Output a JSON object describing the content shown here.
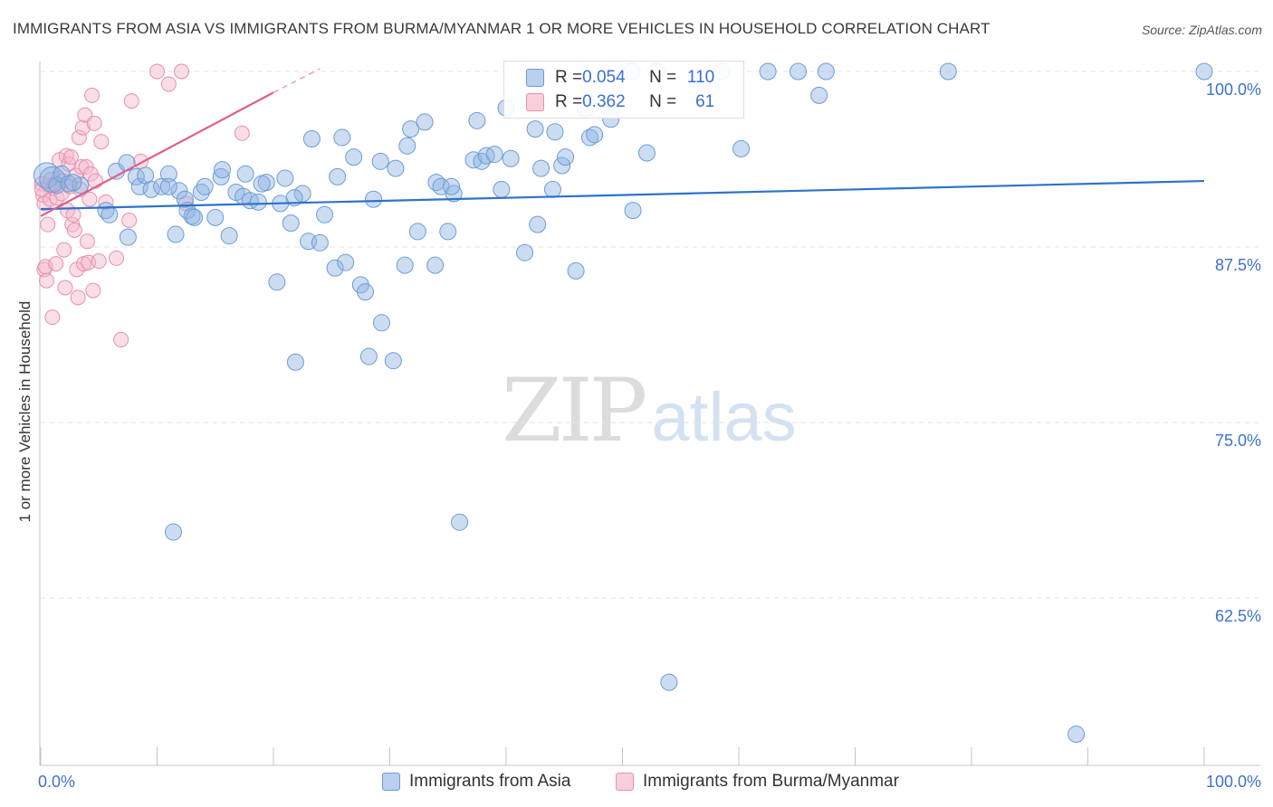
{
  "chart_data": {
    "type": "scatter",
    "title": "IMMIGRANTS FROM ASIA VS IMMIGRANTS FROM BURMA/MYANMAR 1 OR MORE VEHICLES IN HOUSEHOLD CORRELATION CHART",
    "source": "Source: ZipAtlas.com",
    "xlabel": "",
    "ylabel": "1 or more Vehicles in Household",
    "xlim": [
      0,
      100
    ],
    "ylim": [
      50.5,
      101.5
    ],
    "x_tick_labels": {
      "left": "0.0%",
      "right": "100.0%"
    },
    "y_ticks": [
      {
        "value": 100.0,
        "label": "100.0%"
      },
      {
        "value": 87.5,
        "label": "87.5%"
      },
      {
        "value": 75.0,
        "label": "75.0%"
      },
      {
        "value": 62.5,
        "label": "62.5%"
      }
    ],
    "grid": true,
    "legend": {
      "position": "top-center",
      "rows": [
        {
          "r_label": "R = ",
          "r_value": "0.054",
          "n_label": "N = ",
          "n_value": "110"
        },
        {
          "r_label": "R = ",
          "r_value": "0.362",
          "n_label": "N = ",
          "n_value": "61"
        }
      ]
    },
    "series": [
      {
        "name": "Immigrants from Asia",
        "color": "#8fb4e3",
        "stroke": "#6d9bd6",
        "line_color": "#2e73c9",
        "trend": {
          "x1": 0.0,
          "y1": 90.2,
          "x2": 100.0,
          "y2": 92.2
        },
        "points": [
          [
            0.5,
            92.6
          ],
          [
            1.0,
            92.3
          ],
          [
            1.4,
            91.9
          ],
          [
            1.8,
            92.7
          ],
          [
            2.4,
            92.0
          ],
          [
            3.4,
            91.9
          ],
          [
            5.6,
            90.1
          ],
          [
            5.9,
            89.8
          ],
          [
            6.5,
            92.9
          ],
          [
            7.4,
            93.5
          ],
          [
            7.5,
            88.2
          ],
          [
            8.2,
            92.5
          ],
          [
            8.5,
            91.8
          ],
          [
            9.0,
            92.6
          ],
          [
            9.5,
            91.6
          ],
          [
            10.4,
            91.8
          ],
          [
            11.0,
            92.7
          ],
          [
            11.4,
            67.2
          ],
          [
            11.6,
            88.4
          ],
          [
            11.9,
            91.5
          ],
          [
            12.4,
            90.9
          ],
          [
            12.6,
            90.1
          ],
          [
            13.0,
            89.7
          ],
          [
            13.8,
            91.4
          ],
          [
            14.1,
            91.8
          ],
          [
            15.0,
            89.6
          ],
          [
            15.5,
            92.5
          ],
          [
            15.6,
            93.0
          ],
          [
            16.2,
            88.3
          ],
          [
            16.8,
            91.4
          ],
          [
            17.4,
            91.1
          ],
          [
            17.6,
            92.7
          ],
          [
            18.0,
            90.8
          ],
          [
            18.7,
            90.7
          ],
          [
            19.4,
            92.1
          ],
          [
            20.3,
            85.0
          ],
          [
            20.6,
            90.6
          ],
          [
            21.0,
            92.4
          ],
          [
            21.5,
            89.2
          ],
          [
            21.9,
            79.3
          ],
          [
            22.5,
            91.3
          ],
          [
            23.0,
            87.9
          ],
          [
            23.3,
            95.2
          ],
          [
            24.0,
            87.8
          ],
          [
            24.4,
            89.8
          ],
          [
            25.3,
            86.0
          ],
          [
            25.5,
            92.5
          ],
          [
            25.9,
            95.3
          ],
          [
            26.2,
            86.4
          ],
          [
            26.9,
            93.9
          ],
          [
            27.5,
            84.8
          ],
          [
            27.9,
            84.3
          ],
          [
            28.2,
            79.7
          ],
          [
            28.6,
            90.9
          ],
          [
            29.2,
            93.6
          ],
          [
            29.3,
            82.1
          ],
          [
            30.3,
            79.4
          ],
          [
            30.5,
            93.1
          ],
          [
            31.3,
            86.2
          ],
          [
            31.5,
            94.7
          ],
          [
            31.8,
            95.9
          ],
          [
            32.4,
            88.6
          ],
          [
            33.0,
            96.4
          ],
          [
            33.9,
            86.2
          ],
          [
            34.0,
            92.1
          ],
          [
            34.4,
            91.8
          ],
          [
            35.0,
            88.6
          ],
          [
            35.5,
            91.3
          ],
          [
            36.0,
            67.9
          ],
          [
            37.2,
            93.7
          ],
          [
            37.5,
            96.5
          ],
          [
            37.9,
            93.6
          ],
          [
            38.3,
            94.0
          ],
          [
            39.0,
            94.1
          ],
          [
            39.6,
            91.6
          ],
          [
            40.0,
            97.4
          ],
          [
            40.4,
            93.8
          ],
          [
            41.6,
            87.1
          ],
          [
            42.5,
            95.9
          ],
          [
            42.7,
            89.1
          ],
          [
            43.0,
            93.1
          ],
          [
            44.0,
            91.6
          ],
          [
            44.2,
            95.7
          ],
          [
            44.8,
            93.3
          ],
          [
            45.1,
            93.9
          ],
          [
            46.0,
            85.8
          ],
          [
            46.8,
            97.3
          ],
          [
            47.2,
            95.3
          ],
          [
            47.6,
            95.5
          ],
          [
            49.0,
            96.6
          ],
          [
            50.9,
            90.1
          ],
          [
            52.1,
            94.2
          ],
          [
            52.9,
            100.0
          ],
          [
            54.0,
            56.5
          ],
          [
            58.5,
            100.0
          ],
          [
            60.2,
            94.5
          ],
          [
            62.5,
            100.0
          ],
          [
            65.1,
            100.0
          ],
          [
            66.9,
            98.3
          ],
          [
            67.5,
            100.0
          ],
          [
            78.0,
            100.0
          ],
          [
            89.0,
            52.8
          ],
          [
            100.0,
            100.0
          ],
          [
            2.8,
            92.1
          ],
          [
            11.0,
            91.8
          ],
          [
            19.0,
            92.0
          ],
          [
            21.8,
            91.0
          ],
          [
            35.3,
            91.8
          ],
          [
            50.8,
            100.0
          ],
          [
            13.2,
            89.6
          ]
        ]
      },
      {
        "name": "Immigrants from Burma/Myanmar",
        "color": "#f4b6ca",
        "stroke": "#e88fab",
        "line_color": "#e0608a",
        "trend": {
          "x1": 0.0,
          "y1": 89.7,
          "x2": 20.0,
          "y2": 98.5
        },
        "trend_dash_end": {
          "x": 24.0,
          "y": 100.2
        },
        "points": [
          [
            0.1,
            92.0
          ],
          [
            0.2,
            91.2
          ],
          [
            0.3,
            90.6
          ],
          [
            0.3,
            85.9
          ],
          [
            0.4,
            86.1
          ],
          [
            0.5,
            85.1
          ],
          [
            0.6,
            89.1
          ],
          [
            0.7,
            91.9
          ],
          [
            0.8,
            90.9
          ],
          [
            0.9,
            92.3
          ],
          [
            1.0,
            82.5
          ],
          [
            1.1,
            91.7
          ],
          [
            1.3,
            86.3
          ],
          [
            1.4,
            91.0
          ],
          [
            1.5,
            92.4
          ],
          [
            1.6,
            93.7
          ],
          [
            1.8,
            91.3
          ],
          [
            1.9,
            92.2
          ],
          [
            2.0,
            87.3
          ],
          [
            2.1,
            84.6
          ],
          [
            2.2,
            94.0
          ],
          [
            2.3,
            90.1
          ],
          [
            2.4,
            93.4
          ],
          [
            2.5,
            91.8
          ],
          [
            2.6,
            93.9
          ],
          [
            2.7,
            89.1
          ],
          [
            2.8,
            89.8
          ],
          [
            2.9,
            88.7
          ],
          [
            3.0,
            92.6
          ],
          [
            3.1,
            85.9
          ],
          [
            3.2,
            83.9
          ],
          [
            3.3,
            95.3
          ],
          [
            3.4,
            91.6
          ],
          [
            3.5,
            93.2
          ],
          [
            3.6,
            96.0
          ],
          [
            3.7,
            86.3
          ],
          [
            3.8,
            96.9
          ],
          [
            3.9,
            93.2
          ],
          [
            4.0,
            87.9
          ],
          [
            4.1,
            86.4
          ],
          [
            4.2,
            90.9
          ],
          [
            4.3,
            92.7
          ],
          [
            4.4,
            98.3
          ],
          [
            4.5,
            84.4
          ],
          [
            4.6,
            96.3
          ],
          [
            4.7,
            92.2
          ],
          [
            5.0,
            86.5
          ],
          [
            5.2,
            95.0
          ],
          [
            5.6,
            90.7
          ],
          [
            6.5,
            86.7
          ],
          [
            6.9,
            80.9
          ],
          [
            7.6,
            89.4
          ],
          [
            7.8,
            97.9
          ],
          [
            8.6,
            93.6
          ],
          [
            10.0,
            100.0
          ],
          [
            11.0,
            99.1
          ],
          [
            12.1,
            100.0
          ],
          [
            12.5,
            90.6
          ],
          [
            17.3,
            95.6
          ],
          [
            0.1,
            91.6
          ],
          [
            1.2,
            92.0
          ]
        ]
      }
    ]
  },
  "bottom_legend": [
    "Immigrants from Asia",
    "Immigrants from Burma/Myanmar"
  ],
  "watermark": {
    "part1": "ZIP",
    "part2": "atlas"
  }
}
